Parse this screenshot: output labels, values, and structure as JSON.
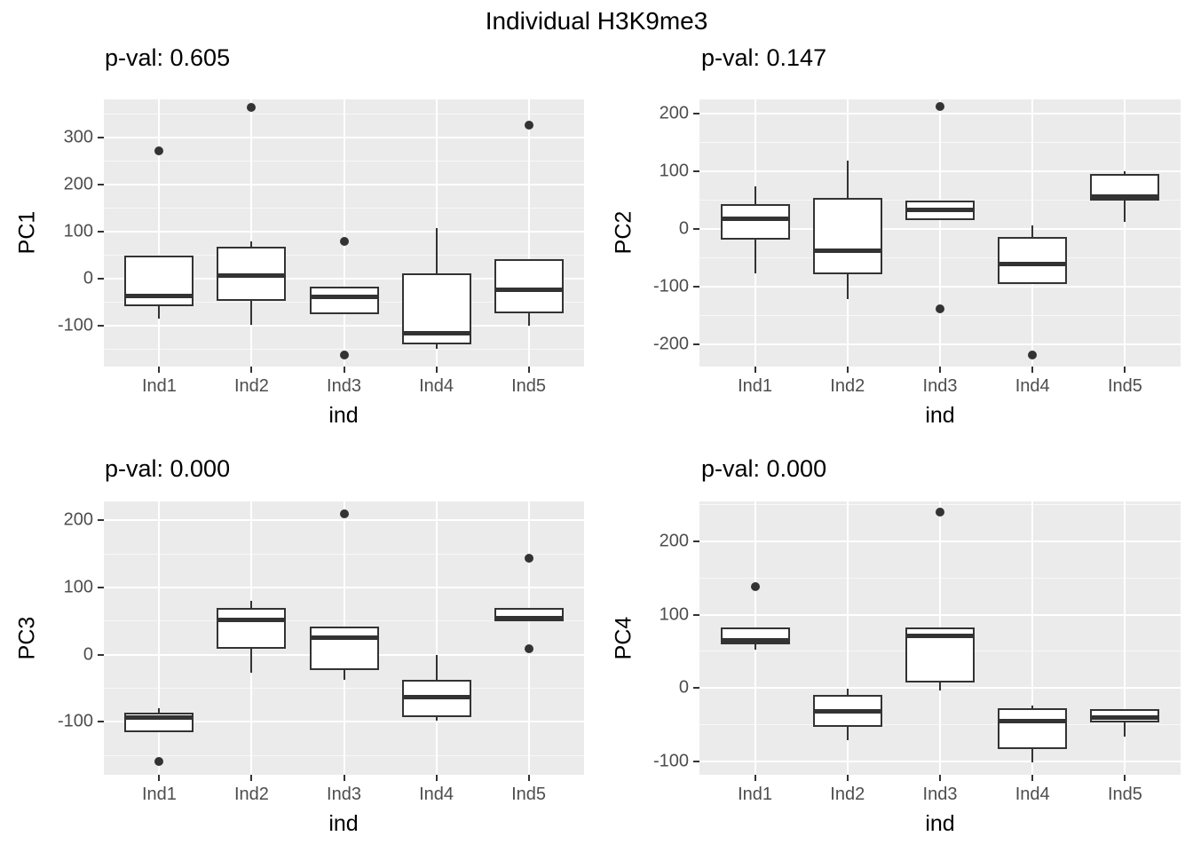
{
  "title": "Individual H3K9me3",
  "colors": {
    "panel_background": "#EBEBEB",
    "grid_major": "#FFFFFF",
    "grid_minor": "#FFFFFF",
    "box_border": "#333333",
    "median": "#333333",
    "outlier": "#333333",
    "tick_label": "#4D4D4D",
    "text": "#000000"
  },
  "categories": [
    "Ind1",
    "Ind2",
    "Ind3",
    "Ind4",
    "Ind5"
  ],
  "chart_data": [
    {
      "type": "boxplot",
      "pval_label": "p-val: 0.605",
      "ylabel": "PC1",
      "xlabel": "ind",
      "categories": [
        "Ind1",
        "Ind2",
        "Ind3",
        "Ind4",
        "Ind5"
      ],
      "yticks": [
        300,
        200,
        100,
        0,
        -100
      ],
      "ylim": [
        -187,
        382
      ],
      "grid": true,
      "boxes": [
        {
          "category": "Ind1",
          "whisker_low": -85,
          "q1": -58,
          "median": -37,
          "q3": 49,
          "whisker_high": 49,
          "outliers": [
            272
          ]
        },
        {
          "category": "Ind2",
          "whisker_low": -98,
          "q1": -47,
          "median": 6,
          "q3": 68,
          "whisker_high": 80,
          "outliers": [
            365
          ]
        },
        {
          "category": "Ind3",
          "whisker_low": -75,
          "q1": -75,
          "median": -38,
          "q3": -17,
          "whisker_high": -17,
          "outliers": [
            80,
            -162
          ]
        },
        {
          "category": "Ind4",
          "whisker_low": -150,
          "q1": -140,
          "median": -117,
          "q3": 12,
          "whisker_high": 107,
          "outliers": []
        },
        {
          "category": "Ind5",
          "whisker_low": -100,
          "q1": -73,
          "median": -24,
          "q3": 42,
          "whisker_high": 42,
          "outliers": [
            327
          ]
        }
      ]
    },
    {
      "type": "boxplot",
      "pval_label": "p-val: 0.147",
      "ylabel": "PC2",
      "xlabel": "ind",
      "categories": [
        "Ind1",
        "Ind2",
        "Ind3",
        "Ind4",
        "Ind5"
      ],
      "yticks": [
        200,
        100,
        0,
        -100,
        -200
      ],
      "ylim": [
        -238,
        225
      ],
      "grid": true,
      "boxes": [
        {
          "category": "Ind1",
          "whisker_low": -76,
          "q1": -18,
          "median": 18,
          "q3": 44,
          "whisker_high": 74,
          "outliers": []
        },
        {
          "category": "Ind2",
          "whisker_low": -121,
          "q1": -78,
          "median": -38,
          "q3": 54,
          "whisker_high": 119,
          "outliers": []
        },
        {
          "category": "Ind3",
          "whisker_low": 16,
          "q1": 16,
          "median": 33,
          "q3": 50,
          "whisker_high": 50,
          "outliers": [
            213,
            -138
          ]
        },
        {
          "category": "Ind4",
          "whisker_low": -95,
          "q1": -95,
          "median": -61,
          "q3": -13,
          "whisker_high": 6,
          "outliers": [
            -218
          ]
        },
        {
          "category": "Ind5",
          "whisker_low": 13,
          "q1": 49,
          "median": 56,
          "q3": 96,
          "whisker_high": 100,
          "outliers": []
        }
      ]
    },
    {
      "type": "boxplot",
      "pval_label": "p-val: 0.000",
      "ylabel": "PC3",
      "xlabel": "ind",
      "categories": [
        "Ind1",
        "Ind2",
        "Ind3",
        "Ind4",
        "Ind5"
      ],
      "yticks": [
        200,
        100,
        0,
        -100
      ],
      "ylim": [
        -179,
        228
      ],
      "grid": true,
      "boxes": [
        {
          "category": "Ind1",
          "whisker_low": -115,
          "q1": -115,
          "median": -94,
          "q3": -86,
          "whisker_high": -80,
          "outliers": [
            -159
          ]
        },
        {
          "category": "Ind2",
          "whisker_low": -27,
          "q1": 8,
          "median": 51,
          "q3": 70,
          "whisker_high": 80,
          "outliers": []
        },
        {
          "category": "Ind3",
          "whisker_low": -38,
          "q1": -23,
          "median": 25,
          "q3": 42,
          "whisker_high": 42,
          "outliers": [
            209
          ]
        },
        {
          "category": "Ind4",
          "whisker_low": -99,
          "q1": -93,
          "median": -63,
          "q3": -38,
          "whisker_high": 0,
          "outliers": []
        },
        {
          "category": "Ind5",
          "whisker_low": 50,
          "q1": 50,
          "median": 54,
          "q3": 70,
          "whisker_high": 70,
          "outliers": [
            143,
            9
          ]
        }
      ]
    },
    {
      "type": "boxplot",
      "pval_label": "p-val: 0.000",
      "ylabel": "PC4",
      "xlabel": "ind",
      "categories": [
        "Ind1",
        "Ind2",
        "Ind3",
        "Ind4",
        "Ind5"
      ],
      "yticks": [
        200,
        100,
        0,
        -100
      ],
      "ylim": [
        -118,
        254
      ],
      "grid": true,
      "boxes": [
        {
          "category": "Ind1",
          "whisker_low": 52,
          "q1": 59,
          "median": 65,
          "q3": 83,
          "whisker_high": 83,
          "outliers": [
            138
          ]
        },
        {
          "category": "Ind2",
          "whisker_low": -71,
          "q1": -53,
          "median": -32,
          "q3": -9,
          "whisker_high": -1,
          "outliers": []
        },
        {
          "category": "Ind3",
          "whisker_low": -3,
          "q1": 8,
          "median": 71,
          "q3": 83,
          "whisker_high": 83,
          "outliers": [
            239
          ]
        },
        {
          "category": "Ind4",
          "whisker_low": -101,
          "q1": -83,
          "median": -45,
          "q3": -27,
          "whisker_high": -24,
          "outliers": []
        },
        {
          "category": "Ind5",
          "whisker_low": -66,
          "q1": -47,
          "median": -40,
          "q3": -29,
          "whisker_high": -29,
          "outliers": []
        }
      ]
    }
  ]
}
